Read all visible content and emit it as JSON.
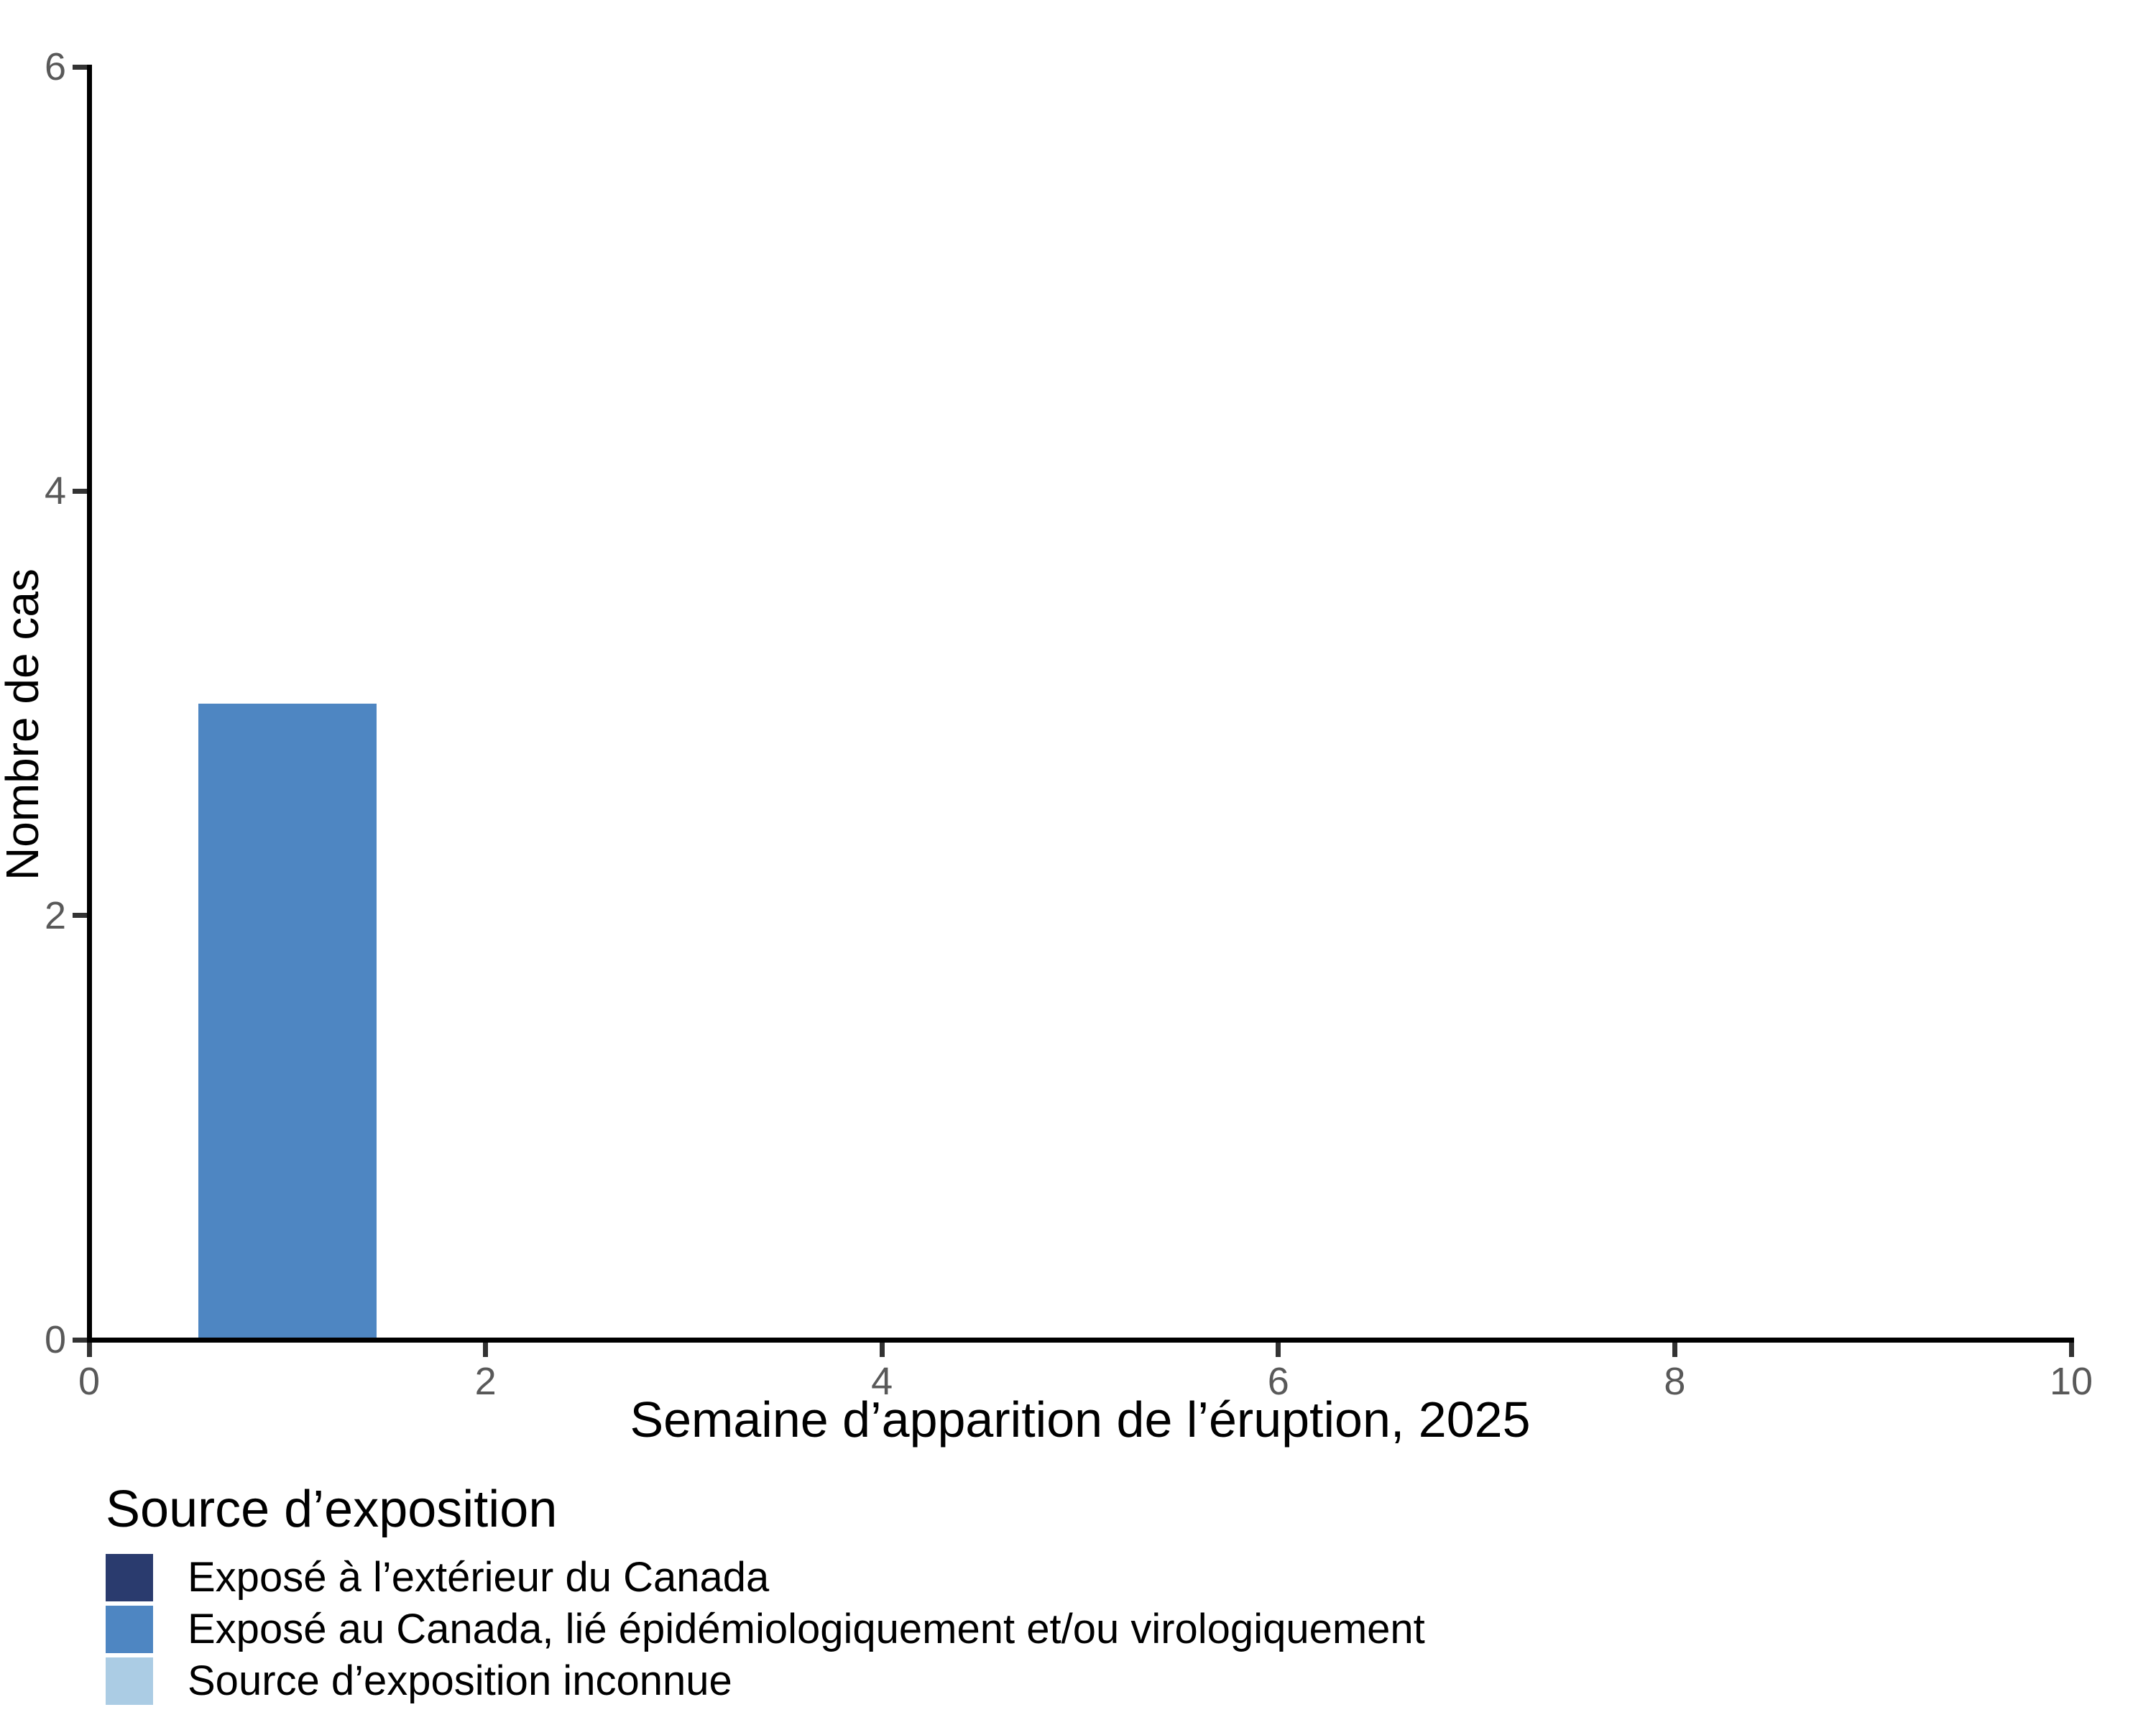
{
  "figure": {
    "background": "#ffffff",
    "axis_color": "#000000",
    "tick_color": "#333333",
    "tick_label_color": "#595959"
  },
  "chart_data": {
    "type": "bar",
    "title": "",
    "xlabel": "Semaine d’apparition de l’éruption, 2025",
    "ylabel": "Nombre de cas",
    "xlim": [
      0,
      10
    ],
    "ylim": [
      0,
      6
    ],
    "x_ticks": [
      0,
      2,
      4,
      6,
      8,
      10
    ],
    "y_ticks": [
      0,
      2,
      4,
      6
    ],
    "grid": false,
    "bar_width": 0.9,
    "stacked": true,
    "legend_title": "Source d’exposition",
    "legend_position": "bottom-left",
    "series": [
      {
        "name": "Exposé à l’extérieur du Canada",
        "color": "#2a3b6e",
        "bars": []
      },
      {
        "name": "Exposé au Canada, lié épidémiologiquement et/ou virologiquement",
        "color": "#4e86c2",
        "bars": [
          {
            "x": 1,
            "y": 3
          }
        ]
      },
      {
        "name": "Source d’exposition inconnue",
        "color": "#abcce4",
        "bars": []
      }
    ]
  }
}
